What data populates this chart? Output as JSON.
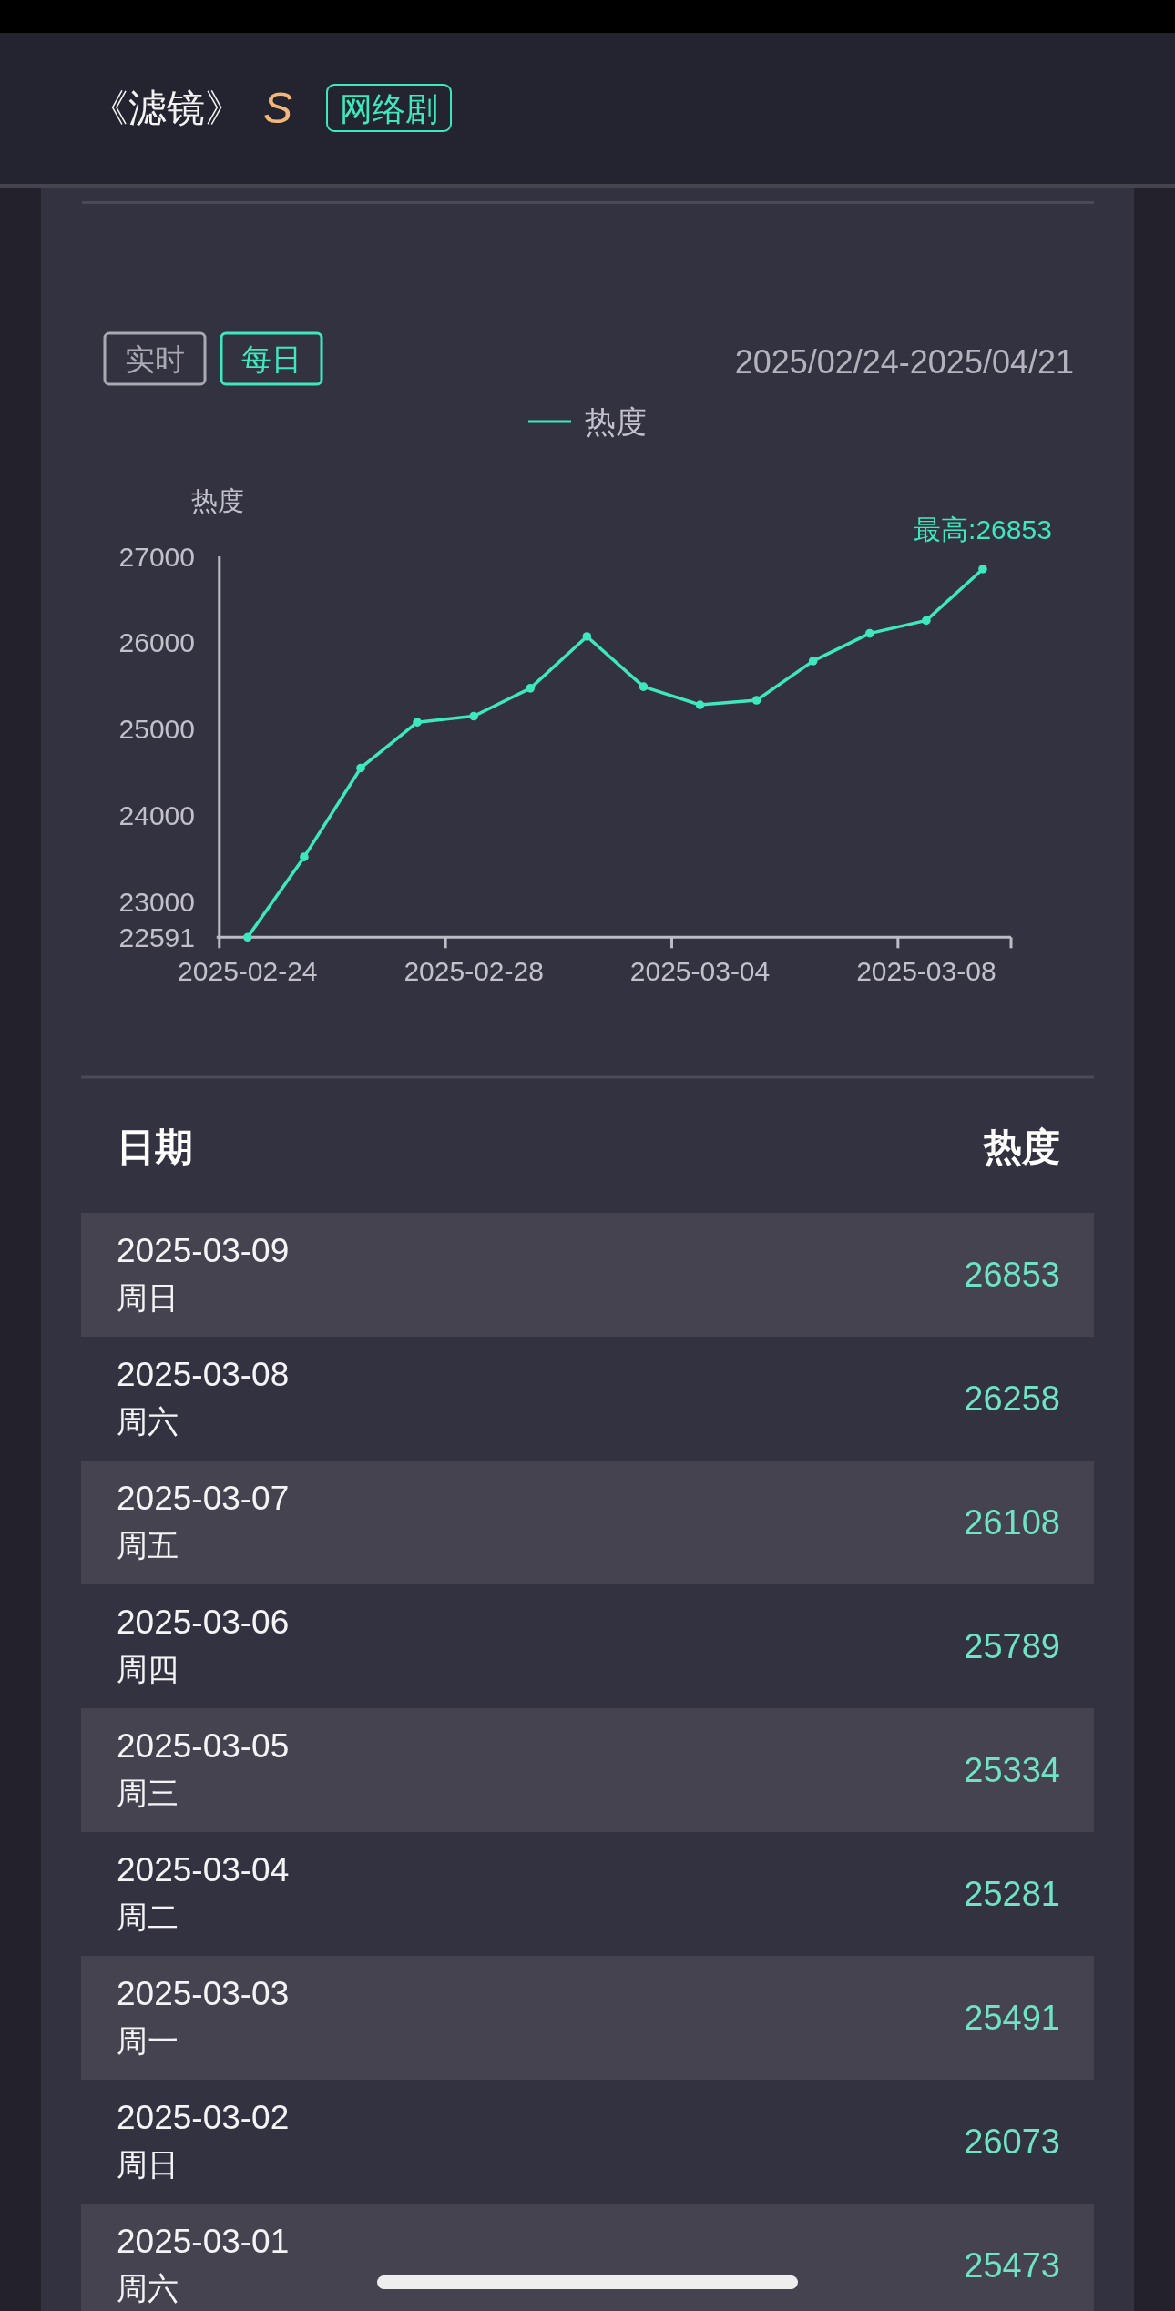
{
  "chart_data": [
    {
      "type": "line",
      "title": "《滤镜》",
      "subtitle": "网络剧",
      "ylabel": "热度",
      "annotations": [
        "S",
        "实时",
        "每日",
        "2025/02/24-2025/04/21",
        {
          "text": "最高:26853",
          "y": 26853
        }
      ],
      "categories": [
        "2025-02-24",
        null,
        null,
        null,
        "2025-02-28",
        null,
        null,
        null,
        "2025-03-04",
        null,
        null,
        null,
        "2025-03-08",
        null
      ],
      "series": [
        {
          "name": "热度",
          "color": "#3de8bf",
          "values": [
            22591,
            23520,
            24550,
            25080,
            25150,
            25473,
            26073,
            25491,
            25281,
            25334,
            25789,
            26108,
            26258,
            26853
          ]
        }
      ],
      "ylim": [
        22591,
        27000
      ],
      "yticks": [
        22591,
        23000,
        24000,
        25000,
        26000,
        27000
      ],
      "legend": "top",
      "marker": "circle",
      "line_style": "solid"
    },
    {
      "type": "other",
      "xlabel": "日期",
      "ylabel": "热度",
      "categories": [
        "2025-03-09",
        "2025-03-08",
        "2025-03-07",
        "2025-03-06",
        "2025-03-05",
        "2025-03-04",
        "2025-03-03",
        "2025-03-02",
        "2025-03-01"
      ],
      "values": [
        26853,
        26258,
        26108,
        25789,
        25334,
        25281,
        25491,
        26073,
        25473
      ],
      "annotations": [
        "周日",
        "周六",
        "周五",
        "周四",
        "周三",
        "周二",
        "周一",
        "周日",
        "周六"
      ],
      "data_labels": true
    }
  ]
}
